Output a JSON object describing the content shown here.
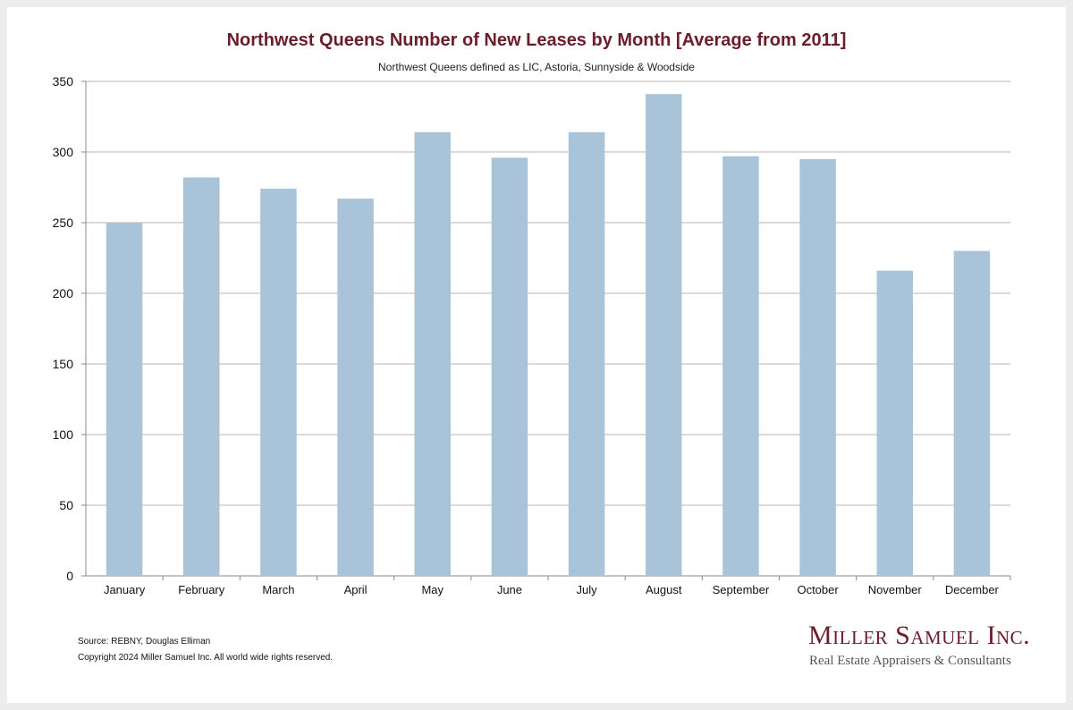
{
  "chart_data": {
    "type": "bar",
    "title": "Northwest Queens Number of New Leases by Month [Average from 2011]",
    "subtitle": "Northwest Queens defined as LIC, Astoria, Sunnyside & Woodside",
    "categories": [
      "January",
      "February",
      "March",
      "April",
      "May",
      "June",
      "July",
      "August",
      "September",
      "October",
      "November",
      "December"
    ],
    "values": [
      250,
      282,
      274,
      267,
      314,
      296,
      314,
      341,
      297,
      295,
      216,
      230
    ],
    "ylim": [
      0,
      350
    ],
    "yticks": [
      "0",
      "50",
      "100",
      "150",
      "200",
      "250",
      "300",
      "350"
    ],
    "grid": true,
    "bar_color": "#a9c4d8"
  },
  "footer": {
    "source": "Source: REBNY, Douglas Elliman",
    "copyright": "Copyright 2024 Miller Samuel Inc.  All world wide rights reserved."
  },
  "logo": {
    "name": "Miller Samuel Inc.",
    "tagline": "Real Estate Appraisers & Consultants"
  },
  "colors": {
    "title": "#6b1d2a",
    "bar": "#a9c4d8",
    "grid": "#b5b5b5"
  }
}
